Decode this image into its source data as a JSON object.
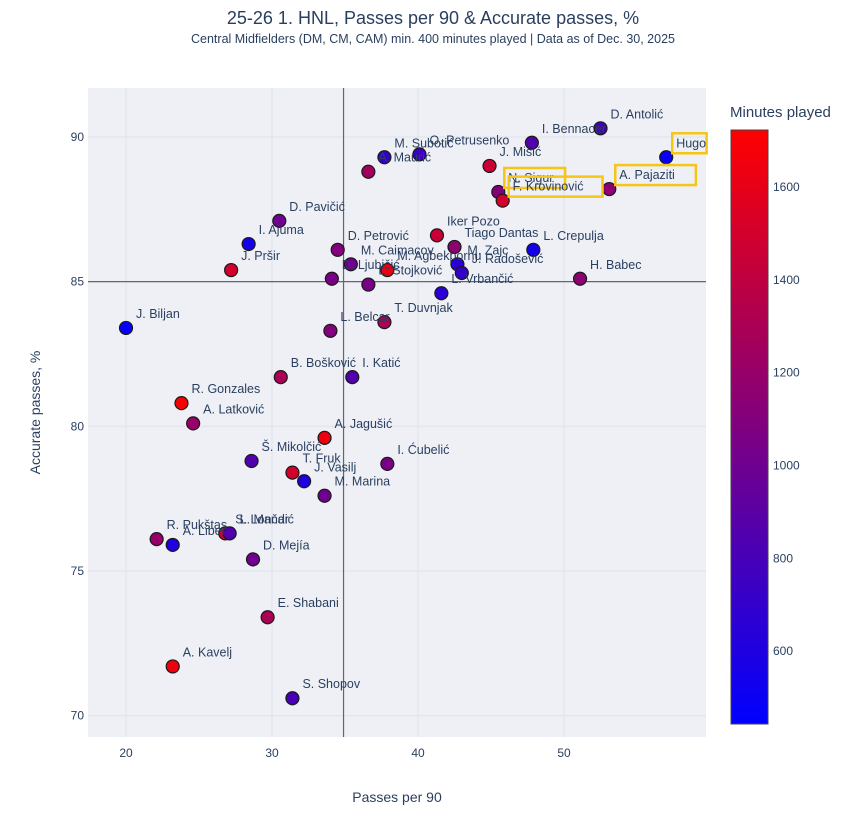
{
  "chart_data": {
    "type": "scatter",
    "title": "25-26 1. HNL, Passes per 90 & Accurate passes, %",
    "subtitle": "Central Midfielders (DM, CM, CAM) min. 400 minutes played | Data as of Dec. 30, 2025",
    "xlabel": "Passes per 90",
    "ylabel": "Accurate passes, %",
    "xlim": [
      17.5,
      60
    ],
    "ylim": [
      69.2,
      91.7
    ],
    "xticks": [
      20,
      30,
      40,
      50
    ],
    "yticks": [
      70,
      75,
      80,
      85,
      90
    ],
    "grid": true,
    "reference_lines": {
      "x_mean": 34.9,
      "y_mean": 85.0
    },
    "colorbar": {
      "title": "Minutes played",
      "min": 443,
      "max": 1723,
      "ticks": [
        600,
        800,
        1000,
        1200,
        1400,
        1600
      ],
      "colorscale": [
        "#0000ff",
        "#ff0000"
      ],
      "placement": "right"
    },
    "highlight_color": "#f5c518",
    "points": [
      {
        "name": "D. Antolić",
        "x": 52.5,
        "y": 90.3,
        "minutes": 800
      },
      {
        "name": "I. Bennacer",
        "x": 47.8,
        "y": 89.8,
        "minutes": 850
      },
      {
        "name": "Hugo",
        "x": 57.0,
        "y": 89.3,
        "minutes": 500,
        "highlight": true
      },
      {
        "name": "O. Petrusenko",
        "x": 40.1,
        "y": 89.4,
        "minutes": 750
      },
      {
        "name": "M. Subotić",
        "x": 37.7,
        "y": 89.3,
        "minutes": 700
      },
      {
        "name": "A. Maurić",
        "x": 36.6,
        "y": 88.8,
        "minutes": 1250
      },
      {
        "name": "J. Misić",
        "x": 44.9,
        "y": 89.0,
        "minutes": 1450
      },
      {
        "name": "N. Sigur",
        "x": 45.5,
        "y": 88.1,
        "minutes": 1100,
        "highlight": true
      },
      {
        "name": "F. Krovinović",
        "x": 45.8,
        "y": 87.8,
        "minutes": 1500,
        "highlight": true
      },
      {
        "name": "A. Pajaziti",
        "x": 53.1,
        "y": 88.2,
        "minutes": 1150,
        "highlight": true
      },
      {
        "name": "D. Pavičić",
        "x": 30.5,
        "y": 87.1,
        "minutes": 1000
      },
      {
        "name": "I. Ajuma",
        "x": 28.4,
        "y": 86.3,
        "minutes": 550
      },
      {
        "name": "J. Pršir",
        "x": 27.2,
        "y": 85.4,
        "minutes": 1500
      },
      {
        "name": "D. Petrović",
        "x": 34.5,
        "y": 86.1,
        "minutes": 1100
      },
      {
        "name": "Iker Pozo",
        "x": 41.3,
        "y": 86.6,
        "minutes": 1450
      },
      {
        "name": "M. Caimacov",
        "x": 35.4,
        "y": 85.6,
        "minutes": 1000
      },
      {
        "name": "Tiago Dantas",
        "x": 42.5,
        "y": 86.2,
        "minutes": 1150
      },
      {
        "name": "M. Zajc",
        "x": 42.7,
        "y": 85.6,
        "minutes": 650
      },
      {
        "name": "J. Radošević",
        "x": 43.0,
        "y": 85.3,
        "minutes": 700
      },
      {
        "name": "L. Crepulja",
        "x": 47.9,
        "y": 86.1,
        "minutes": 550
      },
      {
        "name": "D. Ljubičić",
        "x": 34.1,
        "y": 85.1,
        "minutes": 1050
      },
      {
        "name": "M. Agbekpornu",
        "x": 37.9,
        "y": 85.4,
        "minutes": 1650
      },
      {
        "name": "L. Stojković",
        "x": 36.6,
        "y": 84.9,
        "minutes": 1050
      },
      {
        "name": "L. Vrbančić",
        "x": 41.6,
        "y": 84.6,
        "minutes": 650
      },
      {
        "name": "H. Babec",
        "x": 51.1,
        "y": 85.1,
        "minutes": 1150
      },
      {
        "name": "J. Biljan",
        "x": 20.0,
        "y": 83.4,
        "minutes": 480
      },
      {
        "name": "L. Belcar",
        "x": 34.0,
        "y": 83.3,
        "minutes": 1100
      },
      {
        "name": "T. Duvnjak",
        "x": 37.7,
        "y": 83.6,
        "minutes": 1300
      },
      {
        "name": "B. Bošković",
        "x": 30.6,
        "y": 81.7,
        "minutes": 1300
      },
      {
        "name": "I. Katić",
        "x": 35.5,
        "y": 81.7,
        "minutes": 850
      },
      {
        "name": "R. Gonzales",
        "x": 23.8,
        "y": 80.8,
        "minutes": 1700
      },
      {
        "name": "A. Latković",
        "x": 24.6,
        "y": 80.1,
        "minutes": 1200
      },
      {
        "name": "A. Jagušić",
        "x": 33.6,
        "y": 79.6,
        "minutes": 1650
      },
      {
        "name": "Š. Mikolčić",
        "x": 28.6,
        "y": 78.8,
        "minutes": 850
      },
      {
        "name": "T. Fruk",
        "x": 31.4,
        "y": 78.4,
        "minutes": 1500
      },
      {
        "name": "J. Vasilj",
        "x": 32.2,
        "y": 78.1,
        "minutes": 600
      },
      {
        "name": "I. Ćubelić",
        "x": 37.9,
        "y": 78.7,
        "minutes": 1050
      },
      {
        "name": "M. Marina",
        "x": 33.6,
        "y": 77.6,
        "minutes": 1000
      },
      {
        "name": "R. Pukštas",
        "x": 22.1,
        "y": 76.1,
        "minutes": 1200
      },
      {
        "name": "A. Liber",
        "x": 23.2,
        "y": 75.9,
        "minutes": 600
      },
      {
        "name": "S. Lončar",
        "x": 26.8,
        "y": 76.3,
        "minutes": 1500
      },
      {
        "name": "L. Mandić",
        "x": 27.1,
        "y": 76.3,
        "minutes": 850
      },
      {
        "name": "D. Mejía",
        "x": 28.7,
        "y": 75.4,
        "minutes": 1000
      },
      {
        "name": "E. Shabani",
        "x": 29.7,
        "y": 73.4,
        "minutes": 1300
      },
      {
        "name": "A. Kavelj",
        "x": 23.2,
        "y": 71.7,
        "minutes": 1650
      },
      {
        "name": "S. Shopov",
        "x": 31.4,
        "y": 70.6,
        "minutes": 800
      }
    ]
  }
}
